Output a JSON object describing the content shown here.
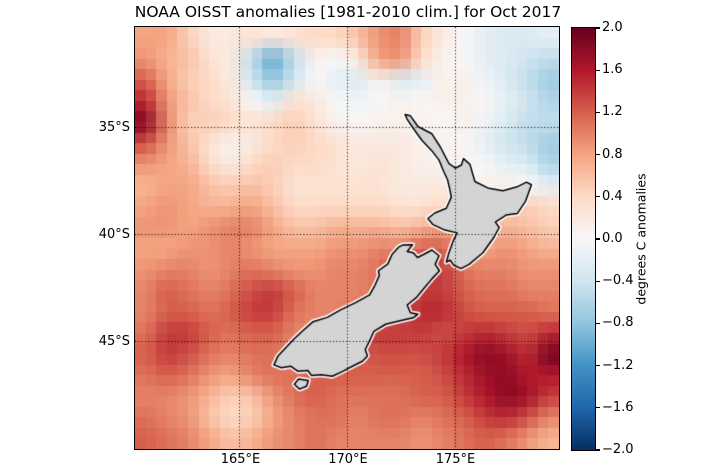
{
  "title": "NOAA OISST anomalies [1981-2010 clim.] for Oct 2017",
  "axes": {
    "lon_range": [
      160.14,
      179.86
    ],
    "lat_range_south": [
      30.33,
      50.05
    ],
    "x_ticks": [
      {
        "label": "165°E",
        "lon": 165
      },
      {
        "label": "170°E",
        "lon": 170
      },
      {
        "label": "175°E",
        "lon": 175
      }
    ],
    "y_ticks": [
      {
        "label": "35°S",
        "lat": 35
      },
      {
        "label": "40°S",
        "lat": 40
      },
      {
        "label": "45°S",
        "lat": 45
      }
    ],
    "grid_color": "#000000",
    "frame_color": "#000000"
  },
  "colorbar": {
    "label": "degrees C anomalies",
    "vmin": -2.0,
    "vmax": 2.0,
    "tick_labels": [
      "2.0",
      "1.6",
      "1.2",
      "0.8",
      "0.4",
      "0.0",
      "−0.4",
      "−0.8",
      "−1.2",
      "−1.6",
      "−2.0"
    ],
    "stops_high_to_low": [
      "#67001f",
      "#b2182b",
      "#d6604d",
      "#f4a582",
      "#fddbc7",
      "#f7f7f7",
      "#d1e5f0",
      "#92c5de",
      "#4393c3",
      "#2166ac",
      "#053061"
    ]
  },
  "map": {
    "land_color": "#d4d4d4",
    "coast_color": "#000000",
    "coast_halo_color": "rgba(255,255,255,0.9)",
    "coastline": {
      "north_island": [
        [
          172.7,
          34.42
        ],
        [
          172.95,
          34.48
        ],
        [
          173.3,
          34.98
        ],
        [
          173.95,
          35.32
        ],
        [
          174.35,
          35.95
        ],
        [
          174.52,
          36.28
        ],
        [
          174.75,
          36.72
        ],
        [
          175.05,
          36.92
        ],
        [
          175.32,
          36.78
        ],
        [
          175.42,
          36.48
        ],
        [
          175.72,
          36.75
        ],
        [
          175.95,
          37.55
        ],
        [
          176.55,
          37.85
        ],
        [
          177.25,
          37.98
        ],
        [
          177.95,
          37.78
        ],
        [
          178.35,
          37.58
        ],
        [
          178.58,
          37.7
        ],
        [
          178.3,
          38.48
        ],
        [
          177.92,
          39.05
        ],
        [
          177.4,
          39.12
        ],
        [
          176.9,
          39.45
        ],
        [
          177.08,
          39.7
        ],
        [
          176.82,
          40.18
        ],
        [
          176.32,
          40.88
        ],
        [
          175.68,
          41.42
        ],
        [
          175.3,
          41.62
        ],
        [
          174.95,
          41.45
        ],
        [
          174.8,
          41.22
        ],
        [
          174.62,
          41.32
        ],
        [
          174.72,
          40.95
        ],
        [
          174.95,
          40.3
        ],
        [
          175.12,
          39.95
        ],
        [
          174.55,
          39.82
        ],
        [
          173.98,
          39.55
        ],
        [
          173.76,
          39.28
        ],
        [
          174.08,
          39.02
        ],
        [
          174.62,
          38.8
        ],
        [
          174.85,
          38.28
        ],
        [
          174.78,
          37.92
        ],
        [
          174.68,
          37.48
        ],
        [
          174.48,
          37.05
        ],
        [
          174.28,
          36.55
        ],
        [
          173.95,
          36.12
        ],
        [
          173.48,
          35.62
        ],
        [
          173.12,
          35.12
        ],
        [
          172.8,
          34.65
        ]
      ],
      "south_island": [
        [
          172.58,
          40.52
        ],
        [
          173.05,
          40.5
        ],
        [
          172.8,
          40.82
        ],
        [
          173.08,
          40.88
        ],
        [
          173.28,
          41.1
        ],
        [
          173.58,
          40.95
        ],
        [
          173.95,
          40.75
        ],
        [
          174.28,
          41.02
        ],
        [
          174.1,
          41.42
        ],
        [
          174.3,
          41.72
        ],
        [
          173.95,
          42.1
        ],
        [
          173.68,
          42.42
        ],
        [
          173.25,
          42.95
        ],
        [
          172.8,
          43.32
        ],
        [
          172.95,
          43.68
        ],
        [
          173.3,
          43.75
        ],
        [
          173.08,
          43.92
        ],
        [
          172.52,
          44.05
        ],
        [
          171.8,
          44.22
        ],
        [
          171.25,
          44.55
        ],
        [
          171.05,
          45.0
        ],
        [
          170.85,
          45.4
        ],
        [
          170.95,
          45.7
        ],
        [
          170.72,
          45.95
        ],
        [
          170.32,
          46.15
        ],
        [
          169.8,
          46.42
        ],
        [
          169.32,
          46.65
        ],
        [
          168.8,
          46.58
        ],
        [
          168.35,
          46.62
        ],
        [
          168.18,
          46.38
        ],
        [
          167.72,
          46.42
        ],
        [
          167.38,
          46.18
        ],
        [
          166.95,
          46.25
        ],
        [
          166.6,
          46.12
        ],
        [
          166.78,
          45.72
        ],
        [
          167.15,
          45.32
        ],
        [
          167.52,
          44.92
        ],
        [
          167.88,
          44.58
        ],
        [
          168.42,
          44.1
        ],
        [
          169.08,
          43.9
        ],
        [
          169.7,
          43.55
        ],
        [
          170.42,
          43.2
        ],
        [
          171.05,
          42.85
        ],
        [
          171.3,
          42.4
        ],
        [
          171.5,
          41.95
        ],
        [
          171.46,
          41.72
        ],
        [
          171.9,
          41.4
        ],
        [
          172.1,
          40.95
        ],
        [
          172.4,
          40.62
        ]
      ],
      "stewart_island": [
        [
          167.75,
          46.78
        ],
        [
          168.2,
          46.85
        ],
        [
          168.12,
          47.12
        ],
        [
          167.78,
          47.25
        ],
        [
          167.55,
          47.02
        ]
      ]
    }
  },
  "chart_data": {
    "type": "heatmap",
    "title": "NOAA OISST anomalies [1981-2010 clim.] for Oct 2017",
    "units": "degrees C anomalies",
    "colormap": "RdBu reversed (red = warm anomaly, blue = cold anomaly)",
    "value_range": [
      -2.0,
      2.0
    ],
    "xlabel_ticks": [
      "165°E",
      "170°E",
      "175°E"
    ],
    "ylabel_ticks": [
      "35°S",
      "40°S",
      "45°S"
    ],
    "legend_position": "right colorbar",
    "grid": {
      "n_lon": 20,
      "n_lat": 20,
      "lon_centers_start": 160.6,
      "lon_step": 0.986,
      "lat_south_centers_start": 30.8,
      "lat_step": 0.986,
      "values_north_to_south": [
        [
          0.8,
          0.8,
          0.5,
          0.2,
          0.2,
          0.3,
          0.2,
          0.3,
          0.4,
          0.4,
          0.6,
          0.9,
          1.0,
          0.5,
          0.2,
          0.0,
          -0.2,
          -0.3,
          -0.3,
          -0.2
        ],
        [
          0.9,
          0.7,
          0.6,
          0.3,
          0.2,
          -0.5,
          -1.0,
          -0.5,
          0.1,
          0.0,
          0.2,
          0.8,
          0.9,
          0.4,
          0.1,
          0.0,
          -0.2,
          -0.3,
          -0.4,
          -0.5
        ],
        [
          1.2,
          0.8,
          0.5,
          0.4,
          0.2,
          -0.4,
          -0.8,
          -0.4,
          0.0,
          -0.2,
          -0.3,
          0.1,
          -0.3,
          -0.2,
          0.1,
          0.1,
          -0.1,
          -0.3,
          -0.5,
          -0.7
        ],
        [
          1.5,
          0.9,
          0.6,
          0.4,
          0.3,
          0.0,
          -0.2,
          0.3,
          0.2,
          0.0,
          -0.1,
          0.0,
          0.1,
          0.0,
          0.1,
          0.1,
          0.0,
          -0.2,
          -0.4,
          -0.6
        ],
        [
          1.8,
          1.0,
          0.5,
          0.5,
          0.4,
          0.3,
          0.4,
          0.5,
          0.3,
          0.1,
          0.0,
          0.1,
          0.1,
          0.1,
          0.0,
          0.1,
          -0.1,
          -0.3,
          -0.5,
          -0.5
        ],
        [
          1.3,
          0.9,
          0.6,
          0.3,
          0.1,
          0.2,
          0.4,
          0.5,
          0.4,
          0.3,
          0.2,
          0.2,
          0.2,
          0.1,
          0.1,
          0.0,
          -0.2,
          -0.4,
          -0.5,
          -0.7
        ],
        [
          0.9,
          0.8,
          0.7,
          0.4,
          0.2,
          0.4,
          0.5,
          0.4,
          0.4,
          0.3,
          0.2,
          0.3,
          0.2,
          0.1,
          0.1,
          0.1,
          0.0,
          -0.2,
          -0.3,
          -0.6
        ],
        [
          0.7,
          0.8,
          0.8,
          0.6,
          0.5,
          0.6,
          0.5,
          0.3,
          0.3,
          0.3,
          0.3,
          0.3,
          0.2,
          0.2,
          0.2,
          0.1,
          0.1,
          0.1,
          0.0,
          -0.2
        ],
        [
          0.8,
          0.9,
          0.8,
          0.7,
          0.7,
          0.8,
          0.6,
          0.4,
          0.4,
          0.4,
          0.4,
          0.4,
          0.3,
          0.3,
          0.4,
          0.4,
          0.3,
          0.5,
          0.5,
          0.4
        ],
        [
          0.9,
          0.9,
          0.8,
          0.9,
          1.0,
          1.0,
          0.8,
          0.6,
          0.6,
          0.7,
          0.7,
          0.7,
          0.6,
          0.7,
          0.8,
          0.7,
          0.6,
          0.7,
          0.6,
          0.5
        ],
        [
          0.8,
          0.8,
          0.9,
          0.9,
          1.0,
          0.9,
          0.8,
          0.8,
          0.8,
          0.9,
          0.9,
          1.0,
          1.0,
          1.2,
          1.2,
          0.9,
          0.8,
          0.9,
          0.8,
          0.7
        ],
        [
          0.9,
          1.0,
          1.0,
          0.9,
          1.0,
          1.1,
          1.0,
          0.9,
          0.9,
          1.0,
          1.0,
          1.1,
          1.3,
          1.4,
          1.4,
          1.1,
          1.0,
          1.0,
          0.9,
          0.9
        ],
        [
          1.0,
          1.2,
          1.1,
          1.0,
          1.1,
          1.3,
          1.4,
          1.2,
          1.0,
          1.0,
          1.0,
          1.1,
          1.2,
          1.4,
          1.4,
          1.2,
          1.1,
          1.1,
          1.0,
          1.0
        ],
        [
          1.0,
          1.2,
          1.2,
          1.1,
          1.2,
          1.4,
          1.4,
          1.1,
          1.0,
          1.0,
          1.1,
          1.2,
          1.3,
          1.5,
          1.5,
          1.3,
          1.2,
          1.2,
          1.2,
          1.1
        ],
        [
          1.1,
          1.4,
          1.4,
          1.2,
          1.1,
          1.2,
          1.2,
          1.0,
          1.0,
          1.1,
          1.3,
          1.4,
          1.4,
          1.4,
          1.3,
          1.4,
          1.5,
          1.4,
          1.3,
          1.5
        ],
        [
          1.2,
          1.4,
          1.3,
          1.1,
          1.0,
          1.1,
          1.1,
          1.0,
          1.0,
          1.1,
          1.2,
          1.3,
          1.3,
          1.3,
          1.4,
          1.6,
          1.8,
          1.7,
          1.5,
          1.9
        ],
        [
          1.1,
          1.2,
          1.1,
          0.9,
          0.8,
          1.0,
          1.1,
          1.1,
          1.2,
          1.2,
          1.2,
          1.2,
          1.2,
          1.2,
          1.3,
          1.5,
          1.7,
          1.8,
          1.6,
          1.6
        ],
        [
          1.0,
          1.0,
          0.9,
          0.7,
          0.5,
          0.6,
          0.9,
          1.1,
          1.2,
          1.1,
          1.1,
          1.1,
          1.1,
          1.2,
          1.2,
          1.4,
          1.6,
          1.8,
          1.7,
          1.4
        ],
        [
          1.1,
          1.0,
          0.9,
          0.6,
          0.4,
          0.5,
          0.8,
          1.0,
          1.1,
          1.1,
          1.0,
          1.1,
          1.1,
          1.0,
          1.1,
          1.2,
          1.4,
          1.5,
          1.3,
          1.0
        ],
        [
          1.2,
          1.1,
          1.0,
          0.8,
          0.6,
          0.7,
          0.9,
          1.0,
          1.1,
          1.0,
          1.0,
          1.0,
          1.0,
          0.9,
          1.0,
          1.1,
          1.2,
          1.1,
          0.9,
          0.7
        ]
      ]
    }
  }
}
